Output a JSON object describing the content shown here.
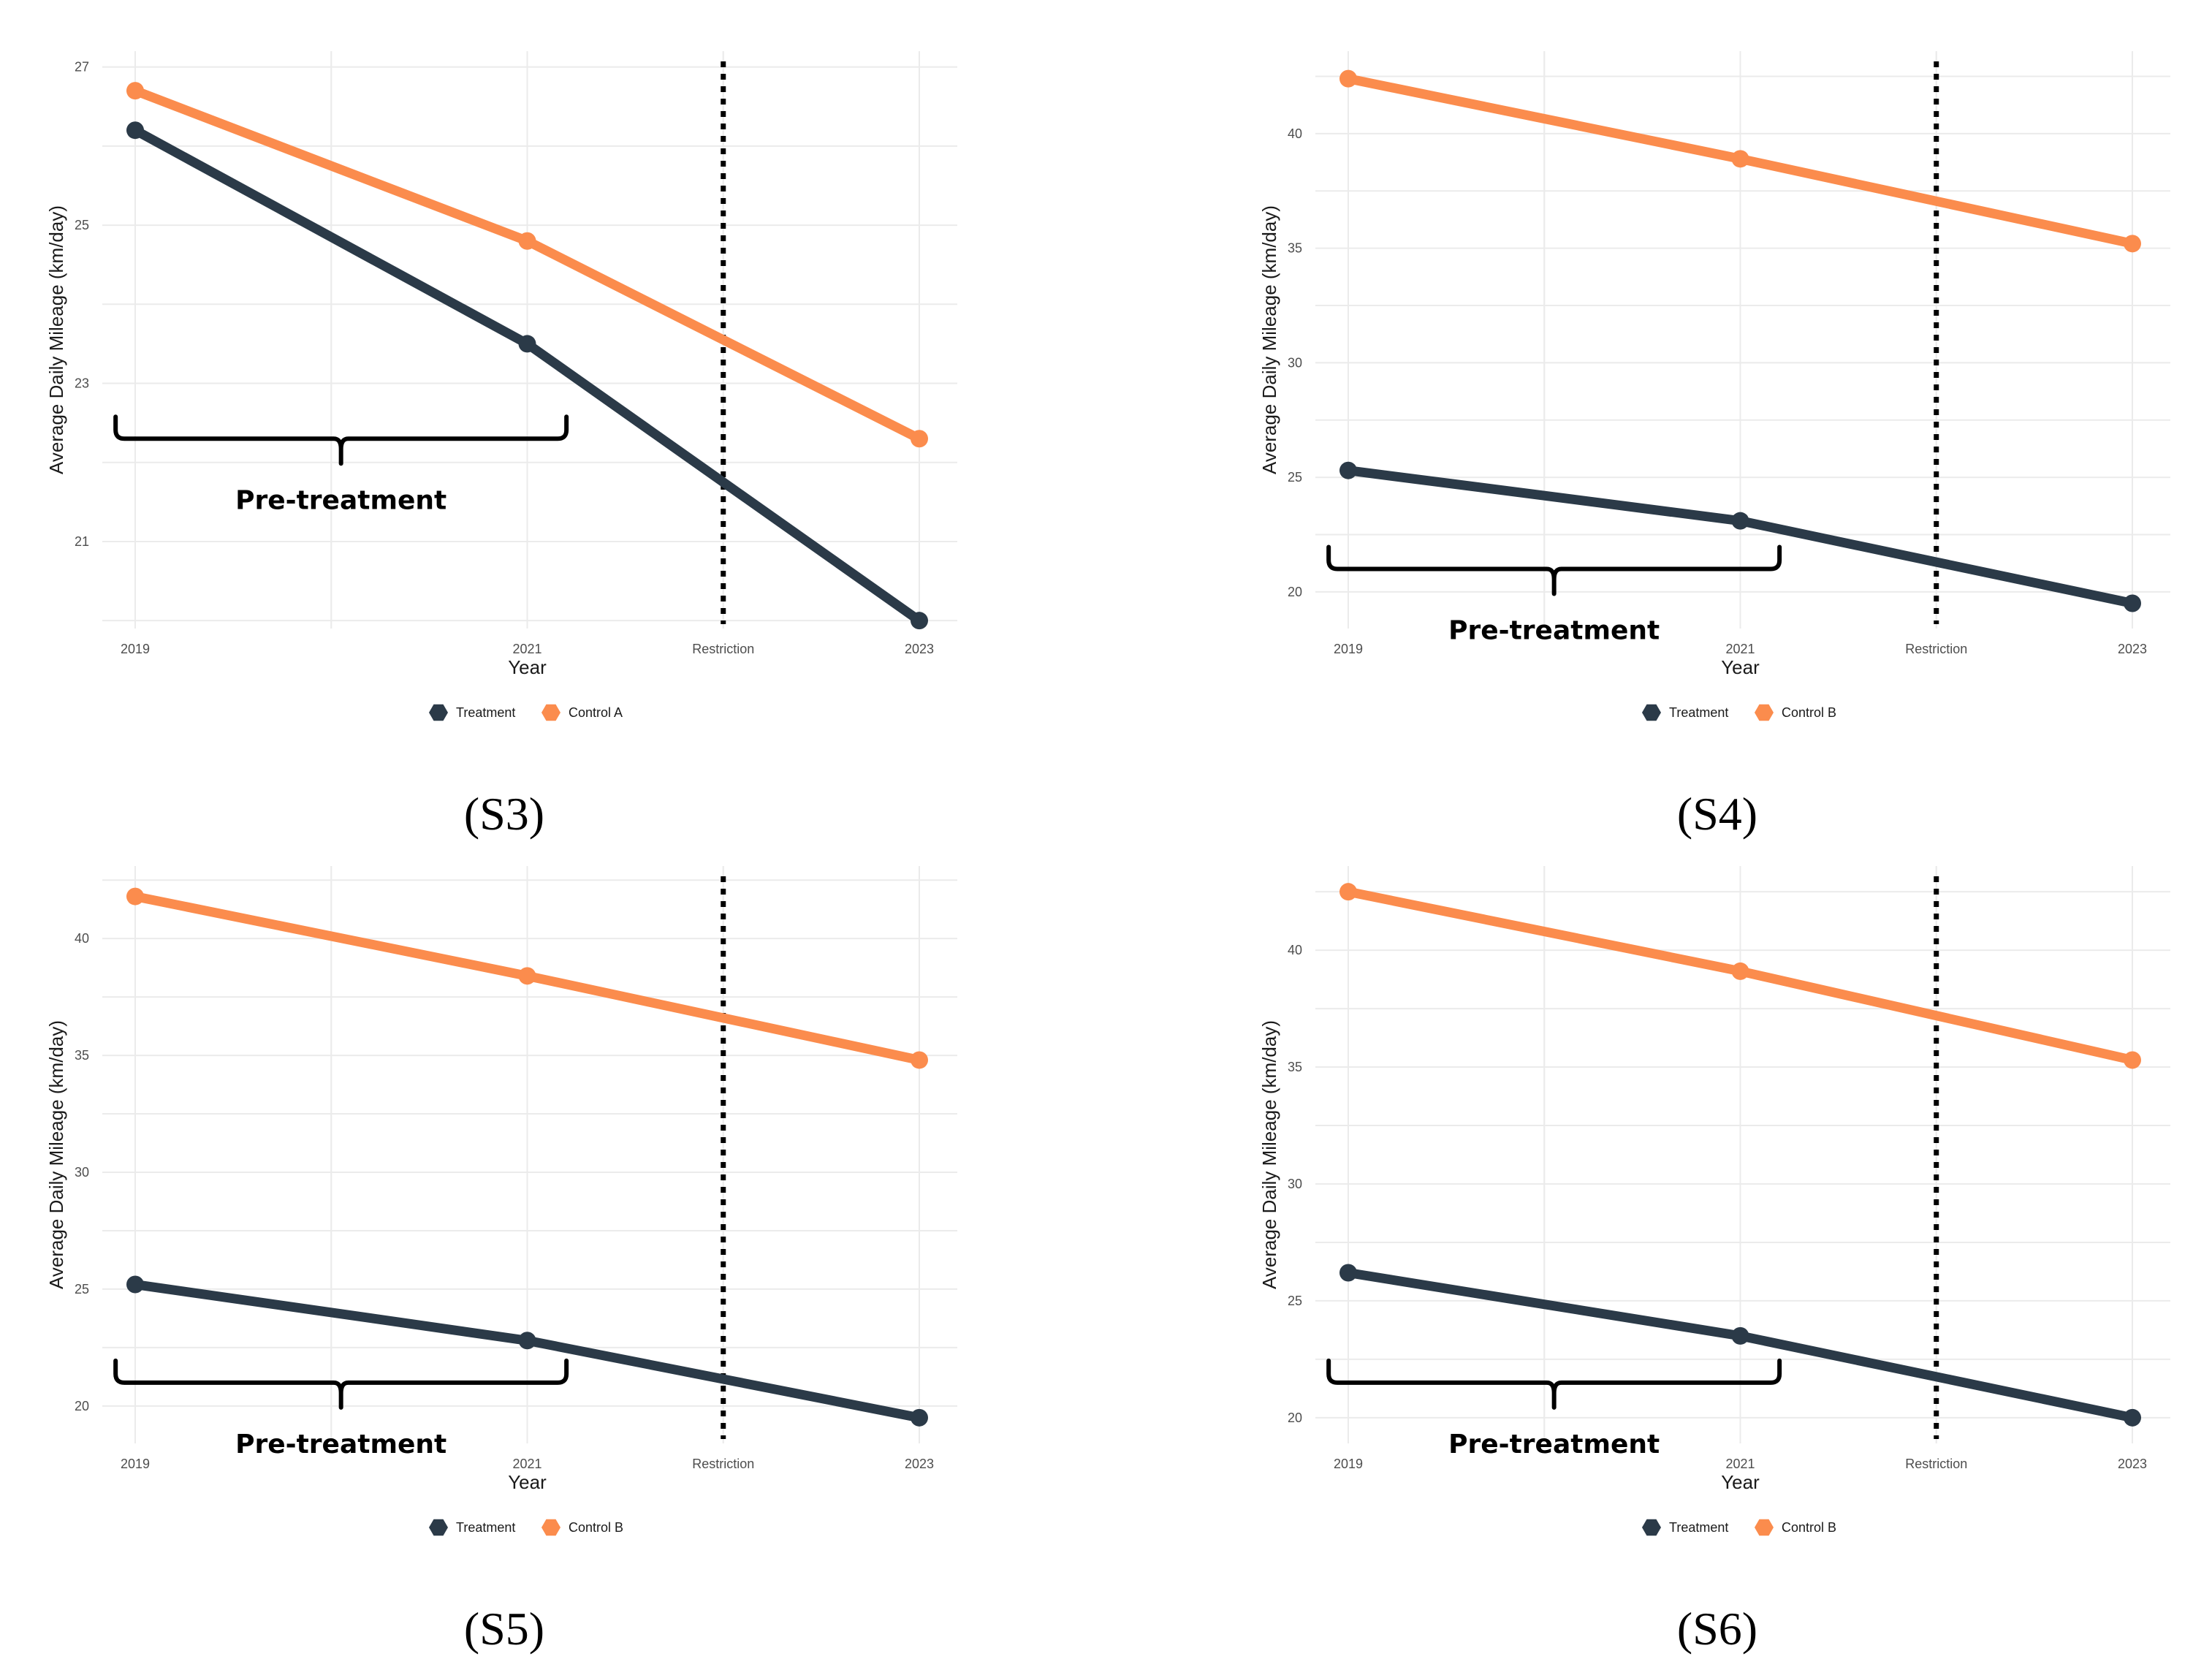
{
  "colors": {
    "treatment": "#2b3a48",
    "control": "#fb8c4d",
    "grid": "#ebebeb",
    "restriction_line": "#000000"
  },
  "chart_data": [
    {
      "type": "line",
      "caption": "(S3)",
      "xlabel": "Year",
      "ylabel": "Average Daily Mileage (km/day)",
      "x_ticks": [
        "2019",
        "2021",
        "Restriction",
        "2023"
      ],
      "y_ticks": [
        21,
        23,
        25,
        27
      ],
      "ylim": [
        19.9,
        27.2
      ],
      "vline": {
        "label": "Restriction",
        "x": 2022
      },
      "annotation": {
        "text": "Pre-treatment",
        "x_range": [
          2018.9,
          2021.2
        ],
        "y": 22.3
      },
      "series": [
        {
          "name": "Treatment",
          "x": [
            2019,
            2021,
            2023
          ],
          "values": [
            26.2,
            23.5,
            20.0
          ]
        },
        {
          "name": "Control A",
          "x": [
            2019,
            2021,
            2023
          ],
          "values": [
            26.7,
            24.8,
            22.3
          ]
        }
      ]
    },
    {
      "type": "line",
      "caption": "(S4)",
      "xlabel": "Year",
      "ylabel": "Average Daily Mileage (km/day)",
      "x_ticks": [
        "2019",
        "2021",
        "Restriction",
        "2023"
      ],
      "y_ticks": [
        20,
        25,
        30,
        35,
        40
      ],
      "ylim": [
        18.4,
        43.6
      ],
      "vline": {
        "label": "Restriction",
        "x": 2022
      },
      "annotation": {
        "text": "Pre-treatment",
        "x_range": [
          2018.9,
          2021.2
        ],
        "y": 21.0
      },
      "series": [
        {
          "name": "Treatment",
          "x": [
            2019,
            2021,
            2023
          ],
          "values": [
            25.3,
            23.1,
            19.5
          ]
        },
        {
          "name": "Control B",
          "x": [
            2019,
            2021,
            2023
          ],
          "values": [
            42.4,
            38.9,
            35.2
          ]
        }
      ]
    },
    {
      "type": "line",
      "caption": "(S5)",
      "xlabel": "Year",
      "ylabel": "Average Daily Mileage (km/day)",
      "x_ticks": [
        "2019",
        "2021",
        "Restriction",
        "2023"
      ],
      "y_ticks": [
        20,
        25,
        30,
        35,
        40
      ],
      "ylim": [
        18.4,
        43.1
      ],
      "vline": {
        "label": "Restriction",
        "x": 2022
      },
      "annotation": {
        "text": "Pre-treatment",
        "x_range": [
          2018.9,
          2021.2
        ],
        "y": 21.0
      },
      "series": [
        {
          "name": "Treatment",
          "x": [
            2019,
            2021,
            2023
          ],
          "values": [
            25.2,
            22.8,
            19.5
          ]
        },
        {
          "name": "Control B",
          "x": [
            2019,
            2021,
            2023
          ],
          "values": [
            41.8,
            38.4,
            34.8
          ]
        }
      ]
    },
    {
      "type": "line",
      "caption": "(S6)",
      "xlabel": "Year",
      "ylabel": "Average Daily Mileage (km/day)",
      "x_ticks": [
        "2019",
        "2021",
        "Restriction",
        "2023"
      ],
      "y_ticks": [
        20,
        25,
        30,
        35,
        40
      ],
      "ylim": [
        18.9,
        43.6
      ],
      "vline": {
        "label": "Restriction",
        "x": 2022
      },
      "annotation": {
        "text": "Pre-treatment",
        "x_range": [
          2018.9,
          2021.2
        ],
        "y": 21.5
      },
      "series": [
        {
          "name": "Treatment",
          "x": [
            2019,
            2021,
            2023
          ],
          "values": [
            26.2,
            23.5,
            20.0
          ]
        },
        {
          "name": "Control B",
          "x": [
            2019,
            2021,
            2023
          ],
          "values": [
            42.5,
            39.1,
            35.3
          ]
        }
      ]
    }
  ]
}
